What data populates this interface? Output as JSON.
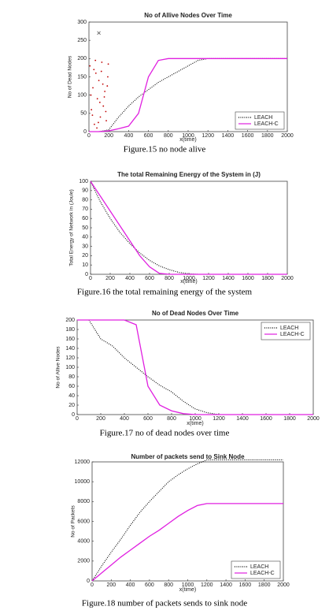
{
  "chart_data": [
    {
      "type": "line",
      "title": "No of Allive Nodes Over Time",
      "xlabel": "x(time)",
      "ylabel": "No of Dead Nodes",
      "caption": "Figure.15 no node alive",
      "x": [
        0,
        100,
        200,
        300,
        400,
        500,
        600,
        700,
        800,
        900,
        1000,
        1100,
        1200,
        1300,
        1400,
        1500,
        1600,
        1700,
        1800,
        1900,
        2000
      ],
      "series": [
        {
          "name": "LEACH",
          "color": "#000000",
          "dash": "1,1.5",
          "values": [
            0,
            0,
            5,
            40,
            70,
            95,
            115,
            135,
            150,
            165,
            180,
            195,
            200,
            200,
            200,
            200,
            200,
            200,
            200,
            200,
            200
          ]
        },
        {
          "name": "LEACH-C",
          "color": "#e020e0",
          "dash": "none",
          "values": [
            0,
            0,
            2,
            8,
            15,
            50,
            150,
            195,
            200,
            200,
            200,
            200,
            200,
            200,
            200,
            200,
            200,
            200,
            200,
            200,
            200
          ]
        }
      ],
      "points": {
        "color": "#c00000",
        "x": [
          10,
          25,
          40,
          55,
          70,
          85,
          100,
          115,
          130,
          145,
          160,
          175,
          190,
          20,
          50,
          80,
          110,
          140,
          170,
          195,
          35,
          65,
          95,
          125,
          155,
          185
        ],
        "y": [
          180,
          60,
          120,
          20,
          160,
          90,
          140,
          40,
          190,
          70,
          110,
          30,
          150,
          100,
          170,
          10,
          80,
          130,
          55,
          185,
          45,
          195,
          25,
          165,
          95,
          125
        ]
      },
      "cross": {
        "x": [
          100
        ],
        "y": [
          270
        ]
      },
      "xlim": [
        0,
        2000
      ],
      "ylim": [
        0,
        300
      ],
      "xticks": [
        0,
        200,
        400,
        600,
        800,
        1000,
        1200,
        1400,
        1600,
        1800,
        2000
      ],
      "yticks": [
        0,
        50,
        100,
        150,
        200,
        250,
        300
      ],
      "legend": "lower right"
    },
    {
      "type": "line",
      "title": "The total Remaining Energy of the System in (J)",
      "xlabel": "x(time)",
      "ylabel": "Total Energy of Network in (Joule)",
      "caption": "Figure.16 the total remaining energy of the system",
      "x": [
        0,
        100,
        200,
        300,
        400,
        500,
        600,
        700,
        800,
        900,
        1000,
        1100,
        1200,
        1300,
        1400,
        1500,
        1600,
        1700,
        1800,
        1900,
        2000
      ],
      "series": [
        {
          "name": "LEACH",
          "color": "#000000",
          "dash": "1,1.5",
          "values": [
            100,
            78,
            60,
            45,
            33,
            23,
            15,
            9,
            5,
            2,
            0.5,
            0,
            0,
            0,
            0,
            0,
            0,
            0,
            0,
            0,
            0
          ]
        },
        {
          "name": "LEACH-C",
          "color": "#e020e0",
          "dash": "none",
          "values": [
            100,
            84,
            68,
            52,
            36,
            20,
            8,
            1,
            0,
            0,
            0,
            0,
            0,
            0,
            0,
            0,
            0,
            0,
            0,
            0,
            0
          ]
        }
      ],
      "xlim": [
        0,
        2000
      ],
      "ylim": [
        0,
        100
      ],
      "xticks": [
        0,
        200,
        400,
        600,
        800,
        1000,
        1200,
        1400,
        1600,
        1800,
        2000
      ],
      "yticks": [
        0,
        10,
        20,
        30,
        40,
        50,
        60,
        70,
        80,
        90,
        100
      ]
    },
    {
      "type": "line",
      "title": "No of Dead Nodes Over Time",
      "xlabel": "x(time)",
      "ylabel": "No of Allive Nodes",
      "caption": "Figure.17 no of dead nodes over time",
      "x": [
        0,
        100,
        200,
        300,
        400,
        500,
        600,
        700,
        800,
        900,
        1000,
        1100,
        1200,
        1300,
        1400,
        1500,
        1600,
        1700,
        1800,
        1900,
        2000
      ],
      "series": [
        {
          "name": "LEACH",
          "color": "#000000",
          "dash": "1,1.5",
          "values": [
            200,
            200,
            160,
            145,
            120,
            100,
            80,
            62,
            48,
            28,
            12,
            4,
            0,
            0,
            0,
            0,
            0,
            0,
            0,
            0,
            0
          ]
        },
        {
          "name": "LEACH-C",
          "color": "#e020e0",
          "dash": "none",
          "values": [
            200,
            200,
            200,
            200,
            200,
            190,
            60,
            20,
            8,
            2,
            0,
            0,
            0,
            0,
            0,
            0,
            0,
            0,
            0,
            0,
            0
          ]
        }
      ],
      "xlim": [
        0,
        2000
      ],
      "ylim": [
        0,
        200
      ],
      "xticks": [
        0,
        200,
        400,
        600,
        800,
        1000,
        1200,
        1400,
        1600,
        1800,
        2000
      ],
      "yticks": [
        0,
        20,
        40,
        60,
        80,
        100,
        120,
        140,
        160,
        180,
        200
      ],
      "legend": "upper right"
    },
    {
      "type": "line",
      "title": "Number of packets send to Sink Node",
      "xlabel": "x(time)",
      "ylabel": "No of Packets",
      "caption": "Figure.18 number of packets sends to sink node",
      "x": [
        0,
        100,
        200,
        300,
        400,
        500,
        600,
        700,
        800,
        900,
        1000,
        1100,
        1200,
        1300,
        1400,
        1500,
        1600,
        1700,
        1800,
        1900,
        2000
      ],
      "series": [
        {
          "name": "LEACH",
          "color": "#000000",
          "dash": "1,1.5",
          "values": [
            0,
            1500,
            2900,
            4200,
            5600,
            6900,
            8000,
            9000,
            10000,
            10700,
            11300,
            11800,
            12200,
            12200,
            12200,
            12200,
            12200,
            12200,
            12200,
            12200,
            12200
          ]
        },
        {
          "name": "LEACH-C",
          "color": "#e020e0",
          "dash": "none",
          "values": [
            0,
            800,
            1600,
            2400,
            3100,
            3800,
            4500,
            5100,
            5800,
            6500,
            7100,
            7600,
            7800,
            7800,
            7800,
            7800,
            7800,
            7800,
            7800,
            7800,
            7800
          ]
        }
      ],
      "xlim": [
        0,
        2000
      ],
      "ylim": [
        0,
        12000
      ],
      "xticks": [
        0,
        200,
        400,
        600,
        800,
        1000,
        1200,
        1400,
        1600,
        1800,
        2000
      ],
      "yticks": [
        0,
        2000,
        4000,
        6000,
        8000,
        10000,
        12000
      ],
      "legend": "lower right"
    }
  ]
}
